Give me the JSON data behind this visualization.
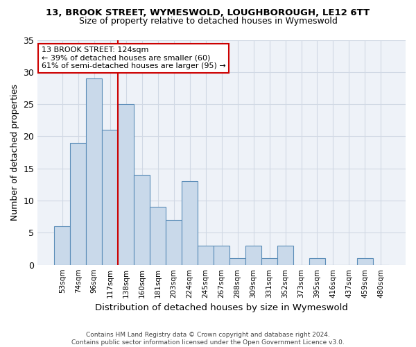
{
  "title1": "13, BROOK STREET, WYMESWOLD, LOUGHBOROUGH, LE12 6TT",
  "title2": "Size of property relative to detached houses in Wymeswold",
  "xlabel": "Distribution of detached houses by size in Wymeswold",
  "ylabel": "Number of detached properties",
  "categories": [
    "53sqm",
    "74sqm",
    "96sqm",
    "117sqm",
    "138sqm",
    "160sqm",
    "181sqm",
    "203sqm",
    "224sqm",
    "245sqm",
    "267sqm",
    "288sqm",
    "309sqm",
    "331sqm",
    "352sqm",
    "373sqm",
    "395sqm",
    "416sqm",
    "437sqm",
    "459sqm",
    "480sqm"
  ],
  "values": [
    6,
    19,
    29,
    21,
    25,
    14,
    9,
    7,
    13,
    3,
    3,
    1,
    3,
    1,
    3,
    0,
    1,
    0,
    0,
    1,
    0
  ],
  "bar_color": "#c9d9ea",
  "bar_edge_color": "#5b8db8",
  "vline_x": 3.5,
  "vline_color": "#cc0000",
  "annotation_text": "13 BROOK STREET: 124sqm\n← 39% of detached houses are smaller (60)\n61% of semi-detached houses are larger (95) →",
  "annotation_box_color": "#ffffff",
  "annotation_box_edge": "#cc0000",
  "ylim": [
    0,
    35
  ],
  "yticks": [
    0,
    5,
    10,
    15,
    20,
    25,
    30,
    35
  ],
  "grid_color": "#d0d8e4",
  "bg_color": "#eef2f8",
  "footer1": "Contains HM Land Registry data © Crown copyright and database right 2024.",
  "footer2": "Contains public sector information licensed under the Open Government Licence v3.0."
}
